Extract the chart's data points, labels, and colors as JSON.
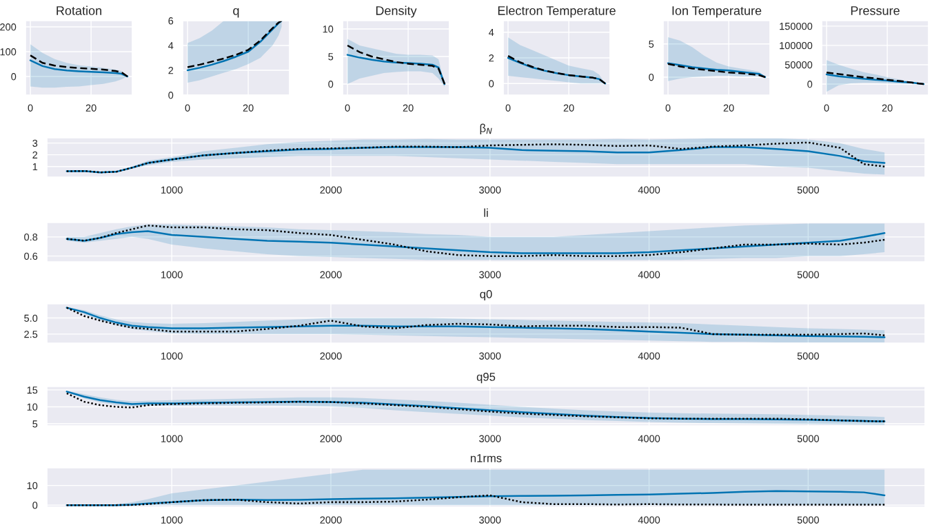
{
  "chart_data": [
    {
      "type": "line",
      "title": "Rotation",
      "x": [
        0,
        4,
        8,
        12,
        16,
        20,
        24,
        28,
        30,
        32
      ],
      "xlim": [
        -1.6,
        33.6
      ],
      "xticks": [
        0,
        20
      ],
      "ylim": [
        -75,
        225
      ],
      "yticks": [
        0,
        100,
        200
      ],
      "grid": true,
      "series": [
        {
          "color": "#0173b2",
          "values": [
            65,
            42,
            30,
            24,
            21,
            19,
            17,
            14,
            11,
            0
          ],
          "lower": [
            -40,
            -45,
            -45,
            -42,
            -40,
            -35,
            -30,
            -20,
            -12,
            0
          ],
          "upper": [
            130,
            95,
            70,
            55,
            45,
            40,
            35,
            28,
            22,
            0
          ],
          "line_style": "solid"
        },
        {
          "color": "#000000",
          "values": [
            85,
            55,
            44,
            38,
            34,
            31,
            28,
            22,
            17,
            0
          ],
          "line_style": "dashed"
        }
      ]
    },
    {
      "type": "line",
      "title": "q",
      "x": [
        0,
        4,
        8,
        12,
        16,
        20,
        24,
        28,
        30,
        31
      ],
      "xlim": [
        -1.6,
        33.6
      ],
      "xticks": [
        0,
        20
      ],
      "ylim": [
        0,
        6
      ],
      "yticks": [
        0,
        2,
        4,
        6
      ],
      "grid": true,
      "series": [
        {
          "color": "#0173b2",
          "values": [
            2.0,
            2.2,
            2.45,
            2.75,
            3.1,
            3.5,
            4.3,
            5.3,
            5.8,
            6.0
          ],
          "lower": [
            1.0,
            1.2,
            1.5,
            1.8,
            2.1,
            2.5,
            3.0,
            4.0,
            4.8,
            5.5
          ],
          "upper": [
            4.2,
            4.6,
            5.2,
            6.0,
            6.0,
            6.0,
            6.0,
            6.0,
            6.0,
            6.0
          ],
          "line_style": "solid"
        },
        {
          "color": "#000000",
          "values": [
            2.25,
            2.45,
            2.7,
            2.95,
            3.25,
            3.65,
            4.4,
            5.4,
            5.85,
            6.0
          ],
          "line_style": "dashed"
        }
      ]
    },
    {
      "type": "line",
      "title": "Density",
      "x": [
        0,
        4,
        8,
        12,
        16,
        20,
        24,
        28,
        30,
        32
      ],
      "xlim": [
        -1.6,
        33.6
      ],
      "xticks": [
        0,
        20
      ],
      "ylim": [
        -2,
        11.5
      ],
      "yticks": [
        0,
        5,
        10
      ],
      "grid": true,
      "series": [
        {
          "color": "#0173b2",
          "values": [
            5.3,
            4.8,
            4.4,
            4.1,
            3.9,
            3.8,
            3.7,
            3.5,
            3.0,
            0
          ],
          "lower": [
            0,
            1,
            1.5,
            2,
            2.2,
            2.3,
            2.3,
            2,
            1,
            -0.5
          ],
          "upper": [
            8.2,
            7,
            6.5,
            6,
            5.5,
            5.3,
            5.3,
            5.2,
            4.5,
            0
          ],
          "line_style": "solid"
        },
        {
          "color": "#000000",
          "values": [
            7.0,
            5.8,
            5.0,
            4.5,
            4.0,
            3.7,
            3.5,
            3.3,
            2.8,
            0
          ],
          "line_style": "dashed"
        }
      ]
    },
    {
      "type": "line",
      "title": "Electron Temperature",
      "x": [
        0,
        4,
        8,
        12,
        16,
        20,
        24,
        28,
        30,
        32
      ],
      "xlim": [
        -1.6,
        33.6
      ],
      "xticks": [
        0,
        20
      ],
      "ylim": [
        -0.9,
        4.9
      ],
      "yticks": [
        0,
        2,
        4
      ],
      "grid": true,
      "series": [
        {
          "color": "#0173b2",
          "values": [
            2.0,
            1.6,
            1.25,
            1.0,
            0.8,
            0.65,
            0.55,
            0.45,
            0.35,
            0
          ],
          "lower": [
            0.6,
            0.5,
            0.4,
            0.3,
            0.2,
            0.1,
            0,
            0,
            0,
            0
          ],
          "upper": [
            3.6,
            3.0,
            2.6,
            2.2,
            1.8,
            1.4,
            1.2,
            1.0,
            0.7,
            0
          ],
          "line_style": "solid"
        },
        {
          "color": "#000000",
          "values": [
            2.15,
            1.65,
            1.3,
            1.02,
            0.82,
            0.66,
            0.55,
            0.45,
            0.35,
            0
          ],
          "line_style": "dashed"
        }
      ]
    },
    {
      "type": "line",
      "title": "Ion Temperature",
      "x": [
        0,
        4,
        8,
        12,
        16,
        20,
        24,
        28,
        30,
        32
      ],
      "xlim": [
        -1.6,
        33.6
      ],
      "xticks": [
        0,
        20
      ],
      "ylim": [
        -2.7,
        8.5
      ],
      "yticks": [
        0,
        5
      ],
      "grid": true,
      "series": [
        {
          "color": "#0173b2",
          "values": [
            2.1,
            1.8,
            1.5,
            1.3,
            1.1,
            1.0,
            0.8,
            0.6,
            0.5,
            0
          ],
          "lower": [
            -0.6,
            -0.2,
            0,
            0.1,
            0.2,
            0.2,
            0.1,
            0.1,
            0.1,
            0
          ],
          "upper": [
            6.0,
            5.5,
            4.5,
            3.2,
            2.2,
            1.6,
            1.3,
            1.0,
            0.8,
            0
          ],
          "line_style": "solid"
        },
        {
          "color": "#000000",
          "values": [
            2.0,
            1.6,
            1.3,
            1.1,
            0.9,
            0.7,
            0.6,
            0.4,
            0.3,
            0
          ],
          "line_style": "dashed"
        }
      ]
    },
    {
      "type": "line",
      "title": "Pressure",
      "x": [
        0,
        4,
        8,
        12,
        16,
        20,
        24,
        28,
        30,
        32
      ],
      "xlim": [
        -1.6,
        33.6
      ],
      "xticks": [
        0,
        20
      ],
      "ylim": [
        -28500,
        164000
      ],
      "yticks": [
        0,
        50000,
        100000,
        150000
      ],
      "grid": true,
      "series": [
        {
          "color": "#0173b2",
          "values": [
            25000,
            20000,
            17000,
            14000,
            11000,
            9000,
            6000,
            4000,
            2000,
            0
          ],
          "lower": [
            -20000,
            -3000,
            2000,
            3000,
            3000,
            2000,
            1000,
            500,
            0,
            0
          ],
          "upper": [
            62000,
            50000,
            40000,
            31000,
            25000,
            18000,
            12000,
            6000,
            3000,
            0
          ],
          "line_style": "solid"
        },
        {
          "color": "#000000",
          "values": [
            30000,
            26000,
            22000,
            18000,
            15000,
            11000,
            8000,
            4000,
            2000,
            0
          ],
          "line_style": "dashed"
        }
      ]
    },
    {
      "type": "line",
      "title": "β$_{N}$",
      "x": [
        340,
        450,
        550,
        650,
        750,
        850,
        1000,
        1200,
        1400,
        1600,
        1800,
        2000,
        2200,
        2400,
        2600,
        2800,
        3000,
        3200,
        3400,
        3600,
        3800,
        4000,
        4200,
        4400,
        4600,
        4800,
        5000,
        5200,
        5350,
        5480
      ],
      "xlim": [
        215,
        5735
      ],
      "xticks": [
        1000,
        2000,
        3000,
        4000,
        5000
      ],
      "ylim": [
        0.1,
        3.45
      ],
      "yticks": [
        1,
        2,
        3
      ],
      "grid": true,
      "series": [
        {
          "color": "#0173b2",
          "values": [
            0.6,
            0.62,
            0.5,
            0.55,
            0.9,
            1.3,
            1.6,
            1.95,
            2.15,
            2.3,
            2.45,
            2.5,
            2.6,
            2.65,
            2.65,
            2.65,
            2.6,
            2.4,
            2.35,
            2.3,
            2.2,
            2.2,
            2.4,
            2.65,
            2.65,
            2.5,
            2.3,
            1.9,
            1.45,
            1.3
          ],
          "lower": [
            0.6,
            0.6,
            0.45,
            0.5,
            0.8,
            1.1,
            1.4,
            1.6,
            1.7,
            1.8,
            1.9,
            1.9,
            1.9,
            1.9,
            1.8,
            1.7,
            1.6,
            1.5,
            1.4,
            1.3,
            1.2,
            1.2,
            1.2,
            1.2,
            1.2,
            1.0,
            0.9,
            0.6,
            0.4,
            0.3
          ],
          "upper": [
            0.62,
            0.65,
            0.55,
            0.6,
            1.0,
            1.5,
            1.8,
            2.3,
            2.6,
            2.9,
            3.1,
            3.2,
            3.3,
            3.3,
            3.35,
            3.3,
            3.3,
            3.3,
            3.3,
            3.3,
            3.35,
            3.3,
            3.35,
            3.4,
            3.4,
            3.4,
            3.3,
            3.0,
            2.5,
            2.2
          ],
          "line_style": "solid"
        },
        {
          "color": "#000000",
          "values": [
            0.6,
            0.62,
            0.5,
            0.55,
            0.9,
            1.3,
            1.6,
            1.95,
            2.15,
            2.35,
            2.5,
            2.55,
            2.6,
            2.7,
            2.7,
            2.65,
            2.8,
            2.85,
            2.9,
            2.85,
            2.75,
            2.8,
            2.5,
            2.7,
            2.8,
            2.95,
            3.05,
            2.6,
            1.2,
            1.0
          ],
          "line_style": "dotted"
        }
      ]
    },
    {
      "type": "line",
      "title": "li",
      "x": [
        340,
        450,
        550,
        650,
        750,
        850,
        1000,
        1200,
        1400,
        1600,
        1800,
        2000,
        2200,
        2400,
        2600,
        2800,
        3000,
        3200,
        3400,
        3600,
        3800,
        4000,
        4200,
        4400,
        4600,
        4800,
        5000,
        5200,
        5350,
        5480
      ],
      "xlim": [
        215,
        5735
      ],
      "xticks": [
        1000,
        2000,
        3000,
        4000,
        5000
      ],
      "ylim": [
        0.54,
        0.95
      ],
      "yticks": [
        0.6,
        0.8
      ],
      "grid": true,
      "series": [
        {
          "color": "#0173b2",
          "values": [
            0.78,
            0.76,
            0.79,
            0.83,
            0.85,
            0.86,
            0.82,
            0.8,
            0.78,
            0.76,
            0.75,
            0.74,
            0.72,
            0.7,
            0.68,
            0.66,
            0.64,
            0.63,
            0.63,
            0.63,
            0.63,
            0.64,
            0.66,
            0.68,
            0.7,
            0.72,
            0.74,
            0.76,
            0.8,
            0.84
          ],
          "lower": [
            0.76,
            0.74,
            0.76,
            0.78,
            0.8,
            0.78,
            0.72,
            0.68,
            0.65,
            0.62,
            0.6,
            0.59,
            0.58,
            0.57,
            0.56,
            0.56,
            0.56,
            0.56,
            0.56,
            0.56,
            0.56,
            0.56,
            0.56,
            0.57,
            0.58,
            0.58,
            0.6,
            0.6,
            0.62,
            0.64
          ],
          "upper": [
            0.8,
            0.8,
            0.84,
            0.88,
            0.91,
            0.93,
            0.93,
            0.92,
            0.91,
            0.9,
            0.88,
            0.87,
            0.86,
            0.85,
            0.83,
            0.82,
            0.8,
            0.8,
            0.8,
            0.82,
            0.84,
            0.86,
            0.88,
            0.9,
            0.92,
            0.93,
            0.94,
            0.94,
            0.94,
            0.94
          ],
          "line_style": "solid"
        },
        {
          "color": "#000000",
          "values": [
            0.78,
            0.76,
            0.79,
            0.84,
            0.88,
            0.92,
            0.9,
            0.9,
            0.88,
            0.87,
            0.84,
            0.82,
            0.77,
            0.72,
            0.65,
            0.61,
            0.6,
            0.6,
            0.61,
            0.6,
            0.6,
            0.61,
            0.64,
            0.68,
            0.72,
            0.72,
            0.73,
            0.72,
            0.74,
            0.77
          ],
          "line_style": "dotted"
        }
      ]
    },
    {
      "type": "line",
      "title": "q0",
      "x": [
        340,
        450,
        550,
        650,
        750,
        850,
        1000,
        1200,
        1400,
        1600,
        1800,
        2000,
        2200,
        2400,
        2600,
        2800,
        3000,
        3200,
        3400,
        3600,
        3800,
        4000,
        4200,
        4400,
        4600,
        4800,
        5000,
        5200,
        5350,
        5480
      ],
      "xlim": [
        215,
        5735
      ],
      "xticks": [
        1000,
        2000,
        3000,
        4000,
        5000
      ],
      "ylim": [
        1.1,
        7.2
      ],
      "yticks": [
        2.5,
        {
          "value": 5,
          "label": "5.0"
        }
      ],
      "grid": true,
      "series": [
        {
          "color": "#0173b2",
          "values": [
            6.6,
            5.9,
            5.0,
            4.3,
            3.8,
            3.6,
            3.4,
            3.4,
            3.5,
            3.6,
            3.7,
            3.8,
            3.8,
            3.7,
            3.7,
            3.7,
            3.6,
            3.5,
            3.4,
            3.3,
            3.1,
            2.9,
            2.7,
            2.5,
            2.4,
            2.3,
            2.2,
            2.15,
            2.1,
            2.0
          ],
          "lower": [
            6.5,
            5.6,
            4.6,
            3.9,
            3.3,
            3.0,
            2.6,
            2.5,
            2.5,
            2.5,
            2.5,
            2.5,
            2.4,
            2.3,
            2.2,
            2.1,
            2.0,
            1.9,
            1.8,
            1.7,
            1.6,
            1.5,
            1.4,
            1.3,
            1.3,
            1.2,
            1.2,
            1.2,
            1.2,
            1.2
          ],
          "upper": [
            6.7,
            6.2,
            5.4,
            4.8,
            4.4,
            4.2,
            4.1,
            4.2,
            4.4,
            4.6,
            4.8,
            5.0,
            5.0,
            5.0,
            5.0,
            4.9,
            4.8,
            4.7,
            4.6,
            4.5,
            4.4,
            4.3,
            4.2,
            4.0,
            3.8,
            3.6,
            3.4,
            3.3,
            3.2,
            3.1
          ],
          "line_style": "solid"
        },
        {
          "color": "#000000",
          "values": [
            6.6,
            5.3,
            4.6,
            4.0,
            3.5,
            3.3,
            2.9,
            2.9,
            2.9,
            3.3,
            3.8,
            4.6,
            3.7,
            3.4,
            3.9,
            4.1,
            4.0,
            3.7,
            3.8,
            3.8,
            3.6,
            3.6,
            3.5,
            2.5,
            2.4,
            2.4,
            2.4,
            2.5,
            2.6,
            2.3
          ],
          "line_style": "dotted"
        }
      ]
    },
    {
      "type": "line",
      "title": "q95",
      "x": [
        340,
        450,
        550,
        650,
        750,
        850,
        1000,
        1200,
        1400,
        1600,
        1800,
        2000,
        2200,
        2400,
        2600,
        2800,
        3000,
        3200,
        3400,
        3600,
        3800,
        4000,
        4200,
        4400,
        4600,
        4800,
        5000,
        5200,
        5350,
        5480
      ],
      "xlim": [
        215,
        5735
      ],
      "xticks": [
        1000,
        2000,
        3000,
        4000,
        5000
      ],
      "ylim": [
        4.4,
        16
      ],
      "yticks": [
        5,
        10,
        15
      ],
      "grid": true,
      "series": [
        {
          "color": "#0173b2",
          "values": [
            14.5,
            13,
            12,
            11.3,
            10.8,
            11,
            11,
            11.2,
            11.3,
            11.4,
            11.5,
            11.4,
            11.2,
            10.7,
            10.2,
            9.6,
            9.0,
            8.4,
            7.9,
            7.4,
            7.0,
            6.7,
            6.5,
            6.4,
            6.4,
            6.3,
            6.2,
            6.0,
            5.8,
            5.7
          ],
          "lower": [
            14.3,
            12.5,
            11.3,
            10.6,
            10.2,
            10.3,
            10.3,
            10.4,
            10.4,
            10.4,
            10.3,
            10.1,
            9.7,
            9.0,
            8.4,
            7.9,
            7.4,
            6.9,
            6.5,
            6.1,
            5.8,
            5.5,
            5.3,
            5.2,
            5.1,
            5.0,
            4.9,
            4.8,
            4.7,
            4.6
          ],
          "upper": [
            14.8,
            13.7,
            12.8,
            12.1,
            11.6,
            11.8,
            12,
            12.2,
            12.4,
            12.6,
            12.8,
            12.8,
            12.6,
            12.2,
            11.8,
            11.2,
            10.6,
            10,
            9.5,
            9.0,
            8.6,
            8.3,
            8.1,
            8.0,
            7.9,
            7.8,
            7.6,
            7.4,
            7.2,
            7.0
          ],
          "line_style": "solid"
        },
        {
          "color": "#000000",
          "values": [
            14,
            11.5,
            10.5,
            10,
            9.8,
            10.5,
            10.8,
            11,
            11.2,
            11.3,
            11.5,
            11.4,
            11.0,
            10.5,
            10.0,
            9.3,
            8.6,
            8.0,
            7.6,
            7.2,
            6.9,
            6.6,
            6.5,
            6.5,
            6.5,
            6.5,
            6.3,
            6.0,
            5.8,
            5.7
          ],
          "line_style": "dotted"
        }
      ]
    },
    {
      "type": "line",
      "title": "n1rms",
      "x": [
        340,
        450,
        550,
        650,
        750,
        850,
        1000,
        1200,
        1400,
        1600,
        1800,
        2000,
        2200,
        2400,
        2600,
        2800,
        3000,
        3200,
        3400,
        3600,
        3800,
        4000,
        4200,
        4400,
        4600,
        4800,
        5000,
        5200,
        5350,
        5480
      ],
      "xlim": [
        215,
        5735
      ],
      "xticks": [
        1000,
        2000,
        3000,
        4000,
        5000
      ],
      "ylim": [
        -1,
        19
      ],
      "yticks": [
        0,
        10
      ],
      "grid": true,
      "series": [
        {
          "color": "#0173b2",
          "values": [
            0,
            0,
            0,
            0,
            0.2,
            0.8,
            1.5,
            2.5,
            2.8,
            2.6,
            2.7,
            3.0,
            3.3,
            3.5,
            3.8,
            4.2,
            4.5,
            4.7,
            4.8,
            5.0,
            5.2,
            5.4,
            5.8,
            6.2,
            6.8,
            7.2,
            7.0,
            6.8,
            6.5,
            5.0
          ],
          "lower": [
            0,
            0,
            0,
            0,
            0,
            0,
            0,
            0,
            0,
            0,
            0,
            0,
            0,
            0,
            0,
            0,
            0,
            0,
            0,
            0,
            0,
            0,
            0,
            0,
            0,
            0,
            0,
            0,
            0,
            0
          ],
          "upper": [
            0,
            0,
            0,
            0.2,
            1.5,
            3,
            6,
            8,
            10,
            12,
            14,
            16,
            18,
            18,
            18,
            18,
            18,
            18,
            18,
            18,
            18,
            18,
            18,
            18,
            18,
            18,
            18,
            18,
            18,
            18
          ],
          "line_style": "solid"
        },
        {
          "color": "#000000",
          "values": [
            0,
            0,
            0,
            0,
            0.1,
            0.5,
            1.5,
            2.5,
            2.8,
            1.5,
            0.8,
            1.5,
            1.5,
            1.8,
            2.8,
            4.0,
            5.0,
            1.5,
            0.5,
            0.5,
            0.3,
            0.5,
            0.3,
            0.3,
            0.2,
            0.2,
            0.2,
            0.2,
            0.2,
            0.2
          ],
          "line_style": "dotted"
        }
      ]
    }
  ]
}
